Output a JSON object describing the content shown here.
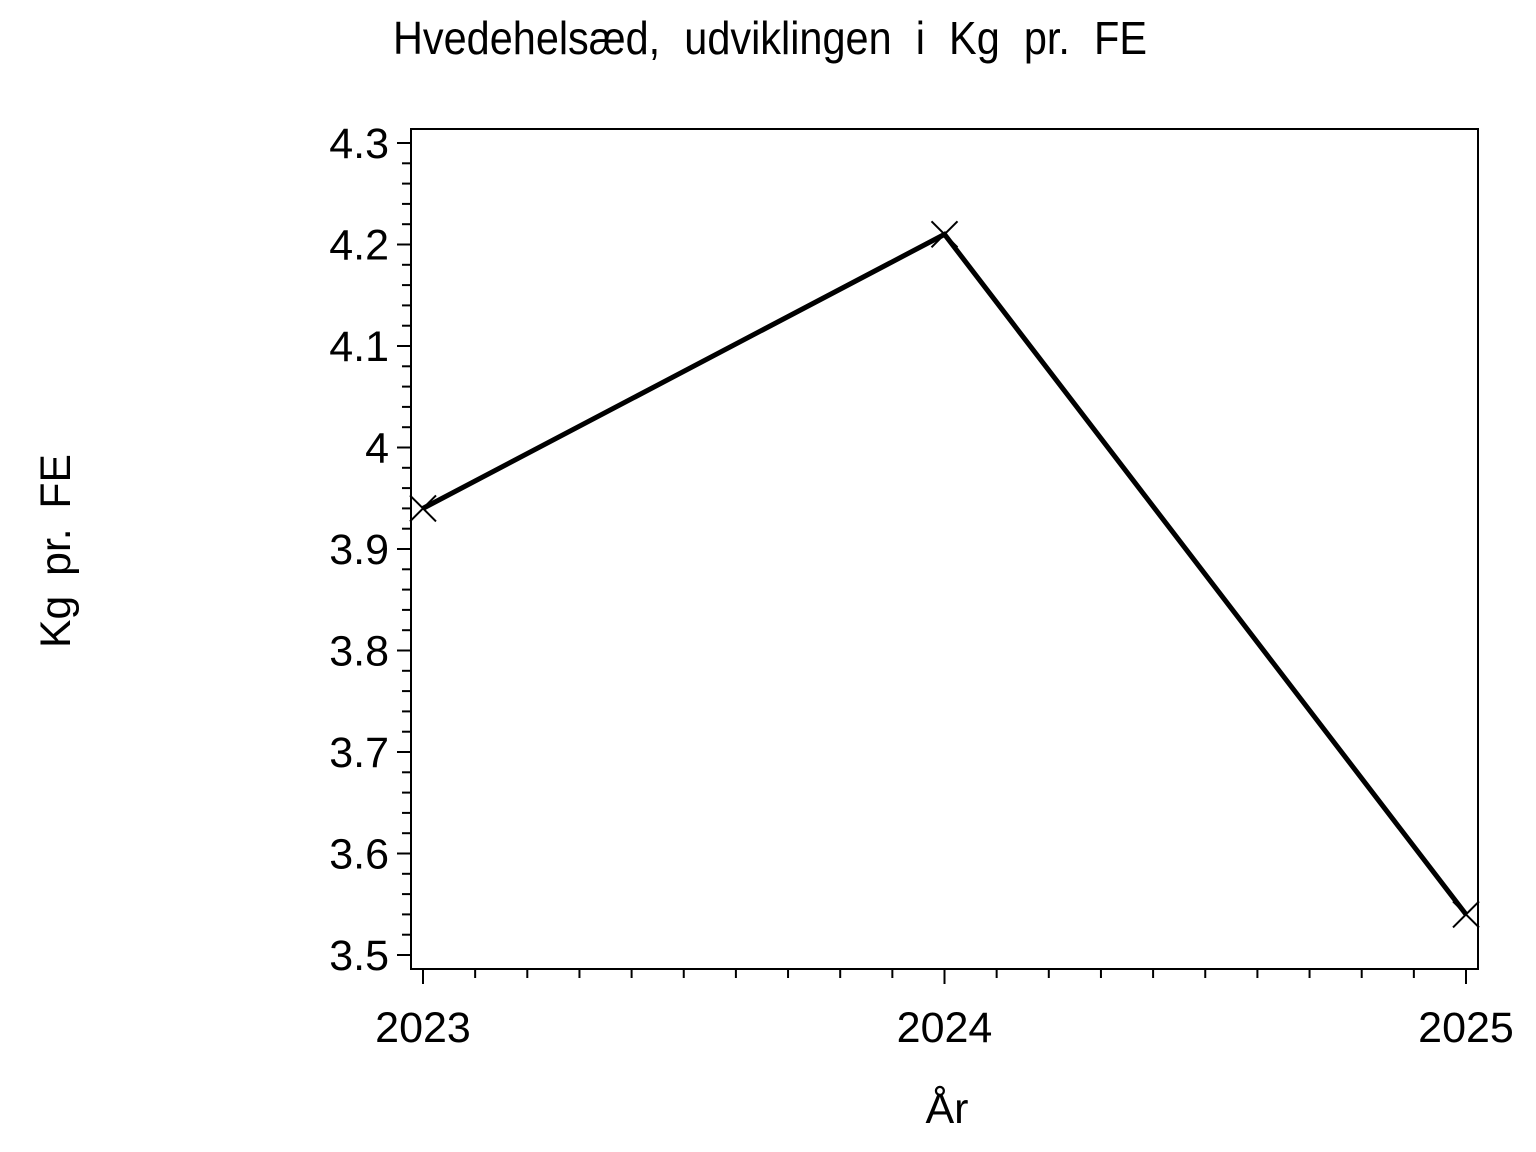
{
  "page": {
    "background_color": "#ffffff"
  },
  "chart_data": {
    "type": "line",
    "title": "Hvedehelsæd, udviklingen i Kg pr. FE",
    "xlabel": "År",
    "ylabel": "Kg pr. FE",
    "x": [
      2023,
      2024,
      2025
    ],
    "x_tick_labels": [
      "2023",
      "2024",
      "2025"
    ],
    "series": [
      {
        "name": "Kg pr. FE",
        "values": [
          3.94,
          4.21,
          3.54
        ],
        "marker": "x",
        "color": "#000000"
      }
    ],
    "ylim": [
      3.5,
      4.3
    ],
    "xlim": [
      2023,
      2025
    ],
    "y_major_step": 0.1,
    "y_minor_step": 0.02,
    "x_major_step": 1,
    "x_minor_step": 0.1,
    "y_tick_labels": [
      "3.5",
      "3.6",
      "3.7",
      "3.8",
      "3.9",
      "4",
      "4.1",
      "4.2",
      "4.3"
    ],
    "grid": false,
    "legend": false,
    "line_color": "#000000",
    "axis_color": "#000000",
    "text_color": "#000000",
    "background_color": "#ffffff"
  }
}
